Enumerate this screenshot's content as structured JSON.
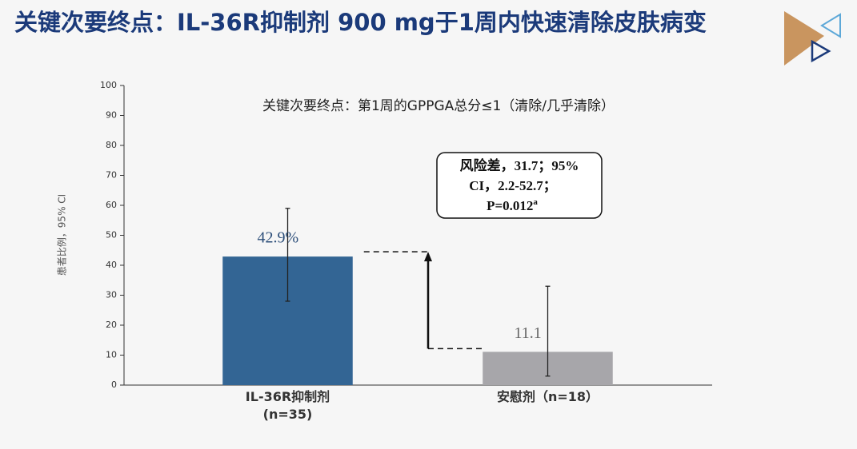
{
  "title": "关键次要终点：IL-36R抑制剂 900 mg于1周内快速清除皮肤病变",
  "chart_data": {
    "type": "bar",
    "subtitle": "关键次要终点：第1周的GPPGA总分≤1（清除/几乎清除）",
    "y_label": "患者比例，95% CI",
    "categories": [
      "IL-36R抑制剂 (n=35)",
      "安慰剂（n=18）"
    ],
    "values": [
      42.9,
      11.1
    ],
    "value_labels": [
      "42.9%",
      "11.1"
    ],
    "ci_low": [
      28,
      3
    ],
    "ci_high": [
      59,
      33
    ],
    "colors": [
      "#336594",
      "#a7a6aa"
    ],
    "ylim": [
      0,
      100
    ],
    "yticks": [
      0,
      10,
      20,
      30,
      40,
      50,
      60,
      70,
      80,
      90,
      100
    ],
    "grid": false,
    "annotation": [
      "风险差，31.7；95%",
      "CI，2.2-52.7；",
      "P=0.012"
    ],
    "annotation_superscript": "a"
  }
}
